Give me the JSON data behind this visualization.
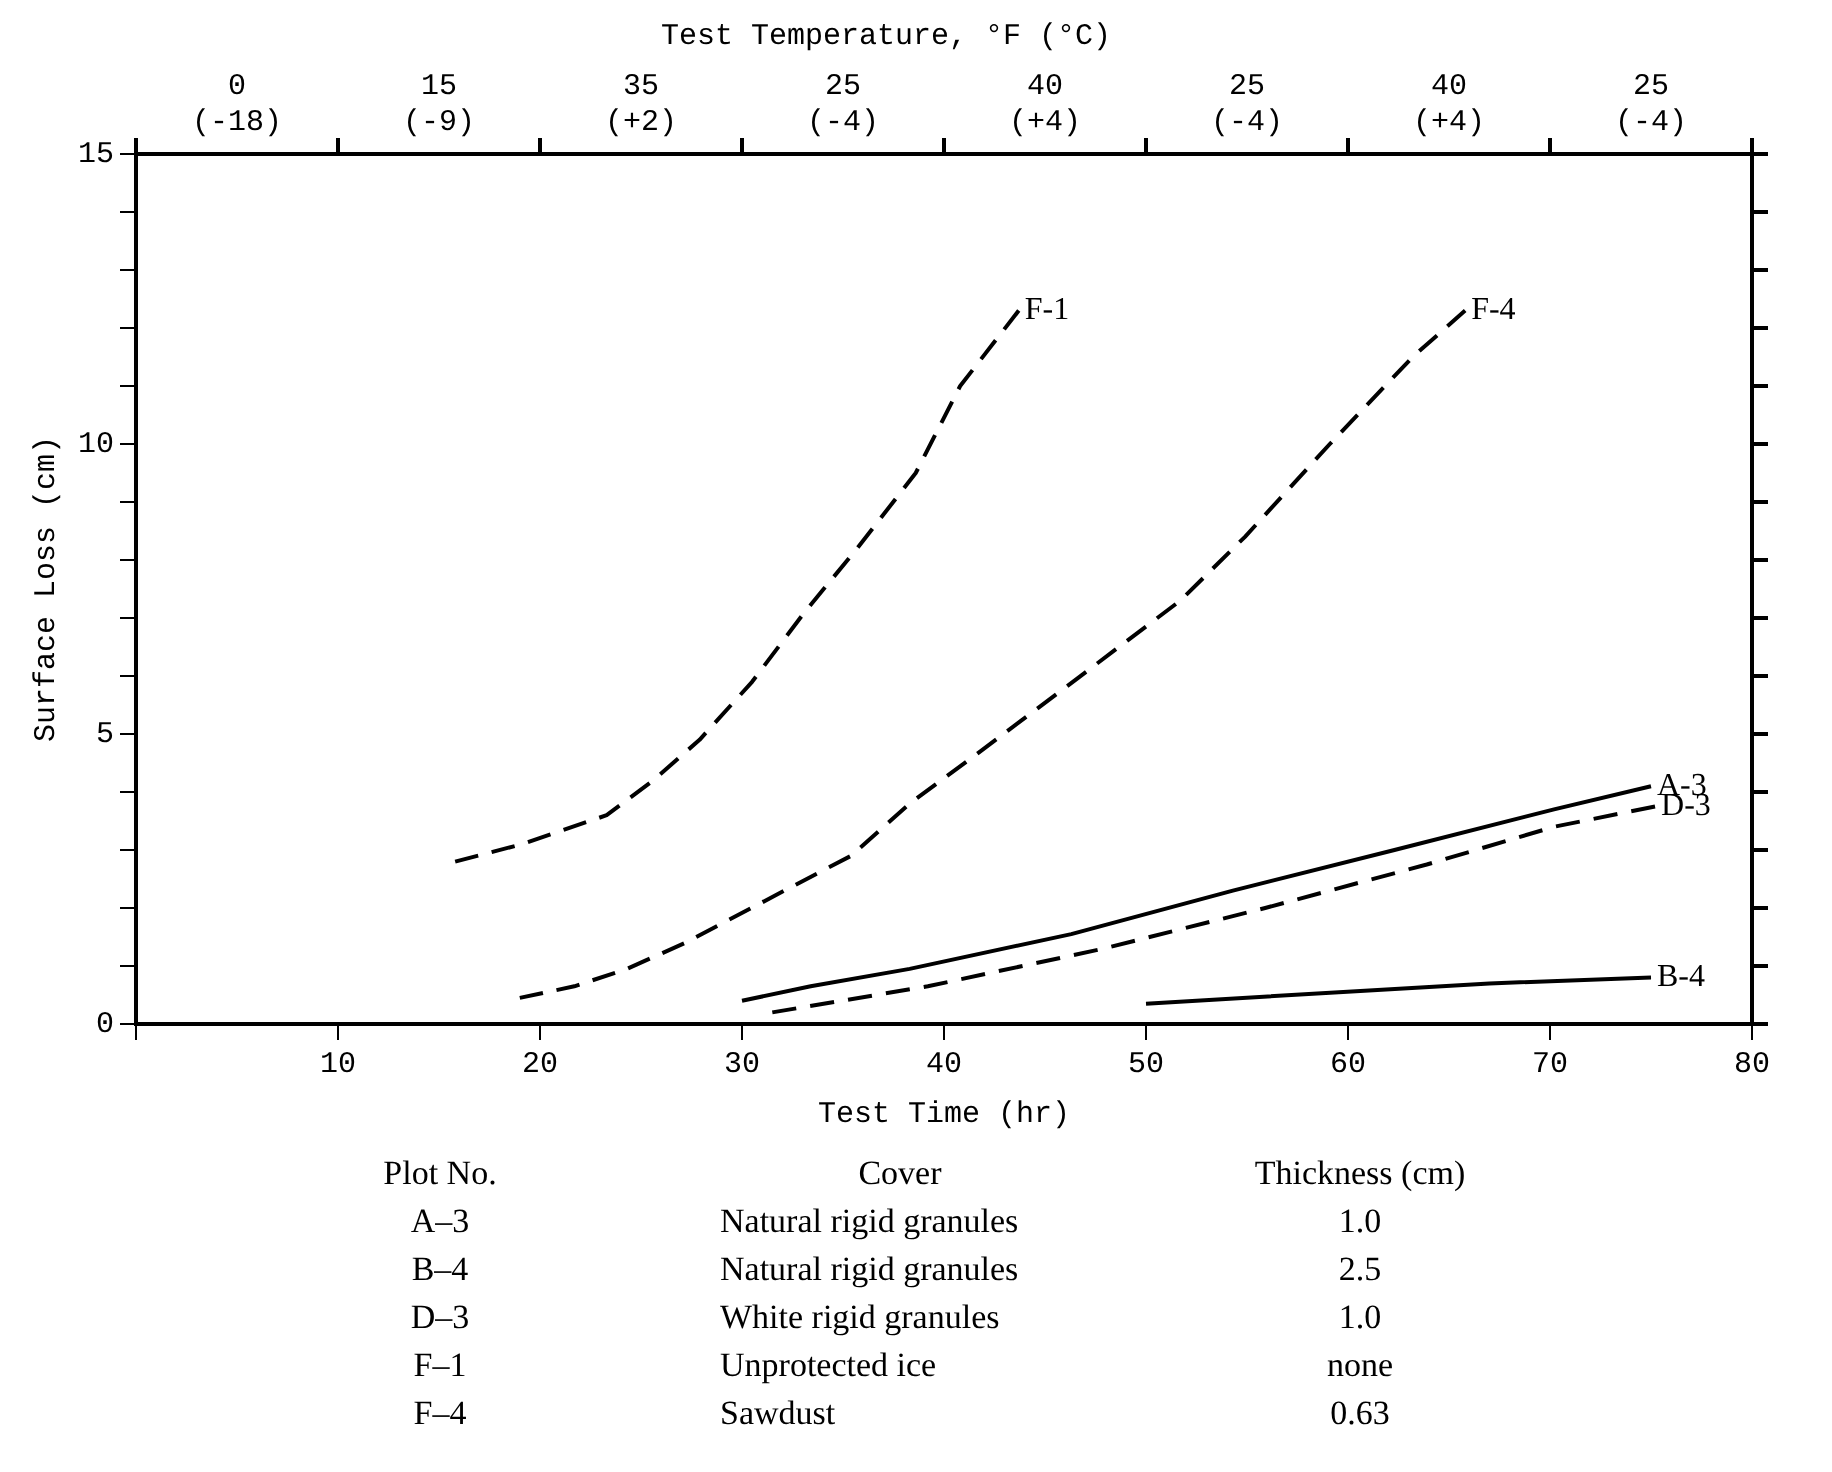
{
  "chart_data": {
    "type": "line",
    "title": "Test Temperature, °F (°C)",
    "xlabel": "Test Time (hr)",
    "ylabel": "Surface Loss (cm)",
    "xlim": [
      0,
      80
    ],
    "xticks": [
      {
        "value": 0,
        "label": null
      },
      10,
      20,
      30,
      40,
      50,
      60,
      70,
      80
    ],
    "ylim": [
      0,
      15
    ],
    "yticks": [
      0,
      {
        "value": 1,
        "label": null
      },
      {
        "value": 2,
        "label": null
      },
      {
        "value": 3,
        "label": null
      },
      {
        "value": 4,
        "label": null
      },
      5,
      {
        "value": 6,
        "label": null
      },
      {
        "value": 7,
        "label": null
      },
      {
        "value": 8,
        "label": null
      },
      {
        "value": 9,
        "label": null
      },
      10,
      {
        "value": 11,
        "label": null
      },
      {
        "value": 12,
        "label": null
      },
      {
        "value": 13,
        "label": null
      },
      {
        "value": 14,
        "label": null
      },
      15
    ],
    "grid": false,
    "legend": "right",
    "marker": "none",
    "series": [
      {
        "name": "F-1",
        "color": "#000000",
        "line_style": "dashed",
        "x": [
          15.8,
          19.1,
          23.3,
          25.6,
          27.9,
          30.5,
          33.1,
          35.7,
          38.6,
          40.8,
          43.7
        ],
        "values": [
          2.8,
          3.1,
          3.6,
          4.2,
          4.9,
          5.9,
          7.1,
          8.2,
          9.5,
          11.0,
          12.3
        ]
      },
      {
        "name": "F-4",
        "color": "#000000",
        "line_style": "dashed",
        "x": [
          19,
          21.7,
          24.3,
          27.2,
          32.1,
          35.4,
          38.3,
          41.8,
          46,
          51.7,
          54.9,
          59.1,
          63.2,
          65.8
        ],
        "values": [
          0.45,
          0.65,
          0.95,
          1.4,
          2.3,
          2.9,
          3.8,
          4.7,
          5.8,
          7.3,
          8.4,
          10.0,
          11.5,
          12.3
        ]
      },
      {
        "name": "A-3",
        "color": "#000000",
        "line_style": "solid",
        "x": [
          30,
          33.4,
          38.3,
          46.3,
          54.3,
          62.3,
          70.2,
          75
        ],
        "values": [
          0.4,
          0.65,
          0.95,
          1.55,
          2.3,
          3.0,
          3.7,
          4.1
        ]
      },
      {
        "name": "D-3",
        "color": "#000000",
        "line_style": "dashed",
        "x": [
          31.5,
          39.2,
          47.9,
          55.9,
          63.9,
          70.2,
          75.2
        ],
        "values": [
          0.2,
          0.65,
          1.3,
          2.0,
          2.75,
          3.4,
          3.75
        ]
      },
      {
        "name": "B-4",
        "color": "#000000",
        "line_style": "solid",
        "x": [
          50,
          67,
          75
        ],
        "values": [
          0.35,
          0.7,
          0.8
        ]
      }
    ],
    "annotations": [
      "0 (-18)",
      "15 (-9)",
      "35 (+2)",
      "25 (-4)",
      "40 (+4)",
      "25 (-4)",
      "40 (+4)",
      "25 (-4)",
      "Plot No.",
      "Cover",
      "Thickness (cm)",
      "A–3",
      "Natural rigid granules",
      "1.0",
      "B–4",
      "Natural rigid granules",
      "2.5",
      "D–3",
      "White rigid granules",
      "1.0",
      "F–1",
      "Unprotected ice",
      "none",
      "F–4",
      "Sawdust",
      "0.63"
    ]
  }
}
